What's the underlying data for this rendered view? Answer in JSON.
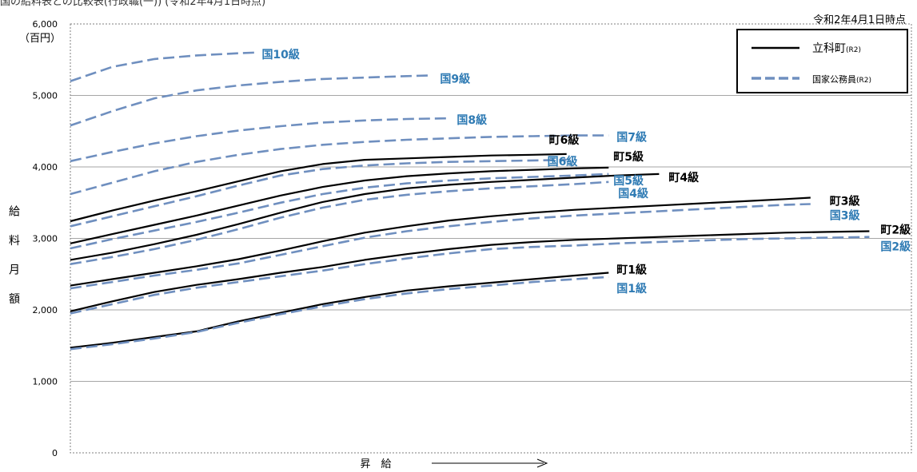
{
  "page": {
    "header_partial": "国の給料表との比較表(行政職(一)) (令和2年4月1日時点)",
    "as_of": "令和2年4月1日時点"
  },
  "colors": {
    "town": "#000000",
    "national": "#6f8fbf",
    "national_label": "#2f7bb4",
    "grid": "#a6a6a6"
  },
  "chart_data": {
    "type": "line",
    "title": "",
    "xlabel": "昇　給",
    "ylabel": "給料月額",
    "ylabel_chars": [
      "給",
      "料",
      "月",
      "額"
    ],
    "yunit": "（百円）",
    "ylim": [
      0,
      6000
    ],
    "yticks": [
      0,
      1000,
      2000,
      3000,
      4000,
      5000,
      6000
    ],
    "ytick_labels": [
      "0",
      "1,000",
      "2,000",
      "3,000",
      "4,000",
      "5,000",
      "6,000"
    ],
    "grid": true,
    "legend_position": "top-right",
    "legend": [
      {
        "name": "立科町",
        "suffix": "(R2)",
        "style": "solid"
      },
      {
        "name": "国家公務員",
        "suffix": "(R2)",
        "style": "dashed"
      }
    ],
    "series": [
      {
        "name": "町1級",
        "group": "town",
        "x": [
          0,
          5,
          10,
          15,
          20,
          25,
          30,
          35,
          40,
          45,
          50,
          55,
          60,
          64
        ],
        "y": [
          1470,
          1540,
          1620,
          1700,
          1840,
          1960,
          2080,
          2180,
          2270,
          2330,
          2380,
          2430,
          2480,
          2520
        ]
      },
      {
        "name": "町2級",
        "group": "town",
        "x": [
          0,
          5,
          10,
          15,
          20,
          25,
          30,
          35,
          40,
          45,
          50,
          55,
          60,
          65,
          70,
          75,
          80,
          85,
          90,
          95
        ],
        "y": [
          1980,
          2120,
          2250,
          2350,
          2430,
          2520,
          2600,
          2700,
          2780,
          2850,
          2910,
          2950,
          2980,
          3000,
          3020,
          3040,
          3060,
          3080,
          3090,
          3100
        ]
      },
      {
        "name": "町3級",
        "group": "town",
        "x": [
          0,
          5,
          10,
          15,
          20,
          25,
          30,
          35,
          40,
          45,
          50,
          55,
          60,
          65,
          70,
          75,
          80,
          85,
          88
        ],
        "y": [
          2340,
          2430,
          2520,
          2610,
          2710,
          2830,
          2960,
          3080,
          3170,
          3250,
          3310,
          3360,
          3400,
          3430,
          3460,
          3490,
          3520,
          3550,
          3570
        ]
      },
      {
        "name": "町4級",
        "group": "town",
        "x": [
          0,
          5,
          10,
          15,
          20,
          25,
          30,
          35,
          40,
          45,
          50,
          55,
          60,
          65,
          70
        ],
        "y": [
          2700,
          2800,
          2920,
          3050,
          3200,
          3360,
          3510,
          3620,
          3700,
          3750,
          3790,
          3820,
          3850,
          3880,
          3900
        ]
      },
      {
        "name": "町5級",
        "group": "town",
        "x": [
          0,
          5,
          10,
          15,
          20,
          25,
          30,
          35,
          40,
          45,
          50,
          55,
          60,
          64
        ],
        "y": [
          2930,
          3060,
          3190,
          3320,
          3460,
          3600,
          3720,
          3810,
          3870,
          3910,
          3940,
          3960,
          3980,
          3990
        ]
      },
      {
        "name": "町6級",
        "group": "town",
        "x": [
          0,
          5,
          10,
          15,
          20,
          25,
          30,
          35,
          40,
          45,
          50,
          55,
          59
        ],
        "y": [
          3240,
          3390,
          3530,
          3660,
          3800,
          3940,
          4040,
          4100,
          4120,
          4140,
          4160,
          4170,
          4180
        ]
      },
      {
        "name": "国1級",
        "group": "national",
        "x": [
          0,
          5,
          10,
          15,
          20,
          25,
          30,
          35,
          40,
          45,
          50,
          55,
          60,
          64
        ],
        "y": [
          1450,
          1520,
          1600,
          1690,
          1820,
          1940,
          2050,
          2150,
          2230,
          2290,
          2340,
          2390,
          2430,
          2460
        ]
      },
      {
        "name": "国2級",
        "group": "national",
        "x": [
          0,
          5,
          10,
          15,
          20,
          25,
          30,
          35,
          40,
          45,
          50,
          55,
          60,
          65,
          70,
          75,
          80,
          85,
          90,
          95
        ],
        "y": [
          1950,
          2080,
          2210,
          2310,
          2390,
          2470,
          2550,
          2640,
          2720,
          2790,
          2850,
          2880,
          2900,
          2930,
          2950,
          2970,
          2990,
          3000,
          3010,
          3020
        ]
      },
      {
        "name": "国3級",
        "group": "national",
        "x": [
          0,
          5,
          10,
          15,
          20,
          25,
          30,
          35,
          40,
          45,
          50,
          55,
          60,
          65,
          70,
          75,
          80,
          85,
          88
        ],
        "y": [
          2300,
          2390,
          2480,
          2560,
          2650,
          2770,
          2890,
          3010,
          3100,
          3170,
          3230,
          3280,
          3320,
          3350,
          3380,
          3410,
          3440,
          3470,
          3480
        ]
      },
      {
        "name": "国4級",
        "group": "national",
        "x": [
          0,
          5,
          10,
          15,
          20,
          25,
          30,
          35,
          40,
          45,
          50,
          55,
          60,
          64
        ],
        "y": [
          2640,
          2740,
          2850,
          2980,
          3130,
          3290,
          3430,
          3540,
          3610,
          3660,
          3700,
          3730,
          3760,
          3790
        ]
      },
      {
        "name": "国5級",
        "group": "national",
        "x": [
          0,
          5,
          10,
          15,
          20,
          25,
          30,
          35,
          40,
          45,
          50,
          55,
          60,
          64
        ],
        "y": [
          2860,
          2990,
          3110,
          3230,
          3360,
          3500,
          3620,
          3710,
          3770,
          3810,
          3840,
          3860,
          3880,
          3900
        ]
      },
      {
        "name": "国6級",
        "group": "national",
        "x": [
          0,
          5,
          10,
          15,
          20,
          25,
          30,
          35,
          40,
          45,
          50,
          55,
          59
        ],
        "y": [
          3170,
          3310,
          3450,
          3590,
          3740,
          3880,
          3970,
          4020,
          4050,
          4070,
          4080,
          4090,
          4100
        ]
      },
      {
        "name": "国7級",
        "group": "national",
        "x": [
          0,
          5,
          10,
          15,
          20,
          25,
          30,
          35,
          40,
          45,
          50,
          55,
          60,
          64
        ],
        "y": [
          3620,
          3780,
          3940,
          4070,
          4170,
          4250,
          4310,
          4350,
          4380,
          4400,
          4420,
          4430,
          4440,
          4440
        ]
      },
      {
        "name": "国8級",
        "group": "national",
        "x": [
          0,
          5,
          10,
          15,
          20,
          25,
          30,
          35,
          40,
          45
        ],
        "y": [
          4080,
          4210,
          4330,
          4430,
          4510,
          4570,
          4620,
          4650,
          4670,
          4680
        ]
      },
      {
        "name": "国9級",
        "group": "national",
        "x": [
          0,
          5,
          10,
          15,
          20,
          25,
          30,
          35,
          40,
          43
        ],
        "y": [
          4580,
          4780,
          4960,
          5070,
          5140,
          5190,
          5230,
          5250,
          5270,
          5280
        ]
      },
      {
        "name": "国10級",
        "group": "national",
        "x": [
          0,
          5,
          10,
          15,
          20,
          22
        ],
        "y": [
          5200,
          5400,
          5510,
          5560,
          5590,
          5600
        ]
      }
    ],
    "annotations": [
      {
        "text": "国10級",
        "series": "国10級",
        "color": "national"
      },
      {
        "text": "国9級",
        "series": "国9級",
        "color": "national"
      },
      {
        "text": "国8級",
        "series": "国8級",
        "color": "national"
      },
      {
        "text": "国7級",
        "series": "国7級",
        "color": "national"
      },
      {
        "text": "町6級",
        "series": "町6級",
        "color": "town"
      },
      {
        "text": "国6級",
        "series": "国6級",
        "color": "national"
      },
      {
        "text": "町5級",
        "series": "町5級",
        "color": "town"
      },
      {
        "text": "国5級",
        "series": "国5級",
        "color": "national"
      },
      {
        "text": "町4級",
        "series": "町4級",
        "color": "town"
      },
      {
        "text": "国4級",
        "series": "国4級",
        "color": "national"
      },
      {
        "text": "町3級",
        "series": "町3級",
        "color": "town"
      },
      {
        "text": "国3級",
        "series": "国3級",
        "color": "national"
      },
      {
        "text": "町2級",
        "series": "町2級",
        "color": "town"
      },
      {
        "text": "国2級",
        "series": "国2級",
        "color": "national"
      },
      {
        "text": "町1級",
        "series": "町1級",
        "color": "town"
      },
      {
        "text": "国1級",
        "series": "国1級",
        "color": "national"
      }
    ]
  }
}
